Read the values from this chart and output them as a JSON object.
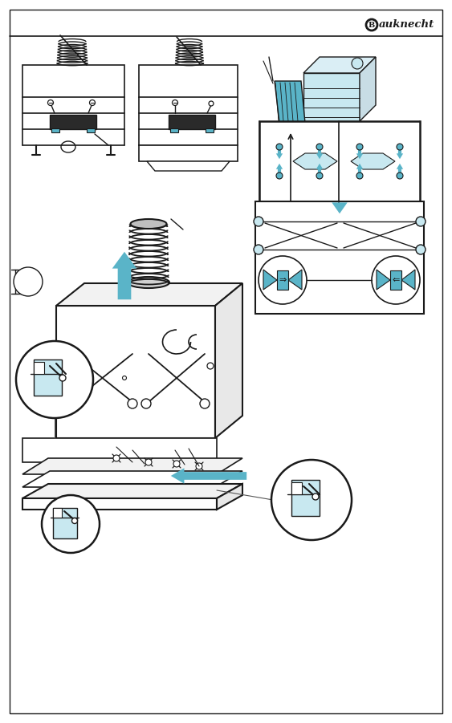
{
  "bg_color": "#ffffff",
  "line_color": "#1a1a1a",
  "blue_color": "#5ab4c8",
  "light_blue": "#c8e8f0",
  "gray_fill": "#e8e8e8",
  "light_gray": "#f2f2f2",
  "dark_fill": "#2a2a2a"
}
